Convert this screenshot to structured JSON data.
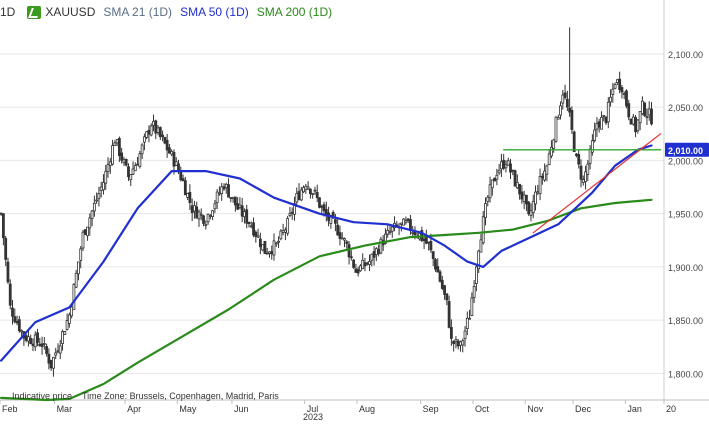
{
  "legend": {
    "timeframe": "1D",
    "symbol": "XAUUSD",
    "icon": "instrument-swatch-icon",
    "sma21": {
      "label": "SMA 21 (1D)",
      "color": "#5a6e86"
    },
    "sma50": {
      "label": "SMA 50 (1D)",
      "color": "#1f2fd0"
    },
    "sma200": {
      "label": "SMA 200 (1D)",
      "color": "#2a8a1a"
    }
  },
  "footer": {
    "indicative": "Indicative price",
    "timezone": "Time Zone: Brussels, Copenhagen, Madrid, Paris"
  },
  "chart_data": {
    "type": "candlestick",
    "x_labels": [
      "Feb",
      "Mar",
      "Apr",
      "May",
      "Jun",
      "Jul",
      "Aug",
      "Sep",
      "Oct",
      "Nov",
      "Dec",
      "Jan",
      "20"
    ],
    "year_label": "2023",
    "y_ticks": [
      "1,800.00",
      "1,850.00",
      "1,900.00",
      "1,950.00",
      "2,000.00",
      "2,050.00",
      "2,100.00"
    ],
    "ylim": [
      1775,
      2130
    ],
    "grid": true,
    "last_price_label": "2,010.00",
    "last_price": 2010,
    "price_color": "#333333",
    "sma50_color": "#1f2fd0",
    "sma200_color": "#2a8a1a",
    "trendline_color": "#e03030",
    "support_color": "#2fa82f",
    "support_level": 2010,
    "anchors": [
      [
        0,
        1950
      ],
      [
        4,
        1862
      ],
      [
        10,
        1835
      ],
      [
        18,
        1828
      ],
      [
        22,
        1808
      ],
      [
        30,
        1855
      ],
      [
        36,
        1930
      ],
      [
        45,
        1980
      ],
      [
        50,
        2020
      ],
      [
        56,
        1985
      ],
      [
        60,
        2000
      ],
      [
        66,
        2035
      ],
      [
        72,
        2015
      ],
      [
        76,
        2000
      ],
      [
        80,
        1980
      ],
      [
        84,
        1955
      ],
      [
        90,
        1945
      ],
      [
        98,
        1978
      ],
      [
        104,
        1955
      ],
      [
        110,
        1940
      ],
      [
        116,
        1915
      ],
      [
        121,
        1920
      ],
      [
        126,
        1940
      ],
      [
        130,
        1965
      ],
      [
        134,
        1980
      ],
      [
        138,
        1968
      ],
      [
        142,
        1950
      ],
      [
        148,
        1935
      ],
      [
        152,
        1920
      ],
      [
        156,
        1896
      ],
      [
        162,
        1905
      ],
      [
        168,
        1925
      ],
      [
        172,
        1935
      ],
      [
        178,
        1940
      ],
      [
        184,
        1930
      ],
      [
        188,
        1920
      ],
      [
        192,
        1895
      ],
      [
        196,
        1865
      ],
      [
        198,
        1830
      ],
      [
        202,
        1825
      ],
      [
        206,
        1855
      ],
      [
        210,
        1920
      ],
      [
        214,
        1965
      ],
      [
        218,
        1990
      ],
      [
        222,
        2000
      ],
      [
        226,
        1980
      ],
      [
        230,
        1962
      ],
      [
        232,
        1945
      ],
      [
        236,
        1975
      ],
      [
        240,
        1995
      ],
      [
        244,
        2035
      ],
      [
        247,
        2065
      ],
      [
        250,
        2040
      ],
      [
        253,
        2000
      ],
      [
        256,
        1980
      ],
      [
        259,
        2005
      ],
      [
        262,
        2035
      ],
      [
        266,
        2040
      ],
      [
        270,
        2075
      ],
      [
        273,
        2070
      ],
      [
        276,
        2045
      ],
      [
        279,
        2030
      ],
      [
        282,
        2050
      ],
      [
        286,
        2040
      ]
    ],
    "sma50": [
      [
        0,
        1812
      ],
      [
        15,
        1848
      ],
      [
        30,
        1862
      ],
      [
        45,
        1905
      ],
      [
        60,
        1955
      ],
      [
        75,
        1990
      ],
      [
        90,
        1990
      ],
      [
        105,
        1983
      ],
      [
        120,
        1965
      ],
      [
        140,
        1950
      ],
      [
        155,
        1942
      ],
      [
        170,
        1940
      ],
      [
        185,
        1932
      ],
      [
        195,
        1920
      ],
      [
        205,
        1905
      ],
      [
        212,
        1900
      ],
      [
        220,
        1915
      ],
      [
        230,
        1925
      ],
      [
        245,
        1940
      ],
      [
        260,
        1970
      ],
      [
        270,
        1995
      ],
      [
        280,
        2010
      ],
      [
        286,
        2014
      ]
    ],
    "sma200": [
      [
        0,
        1777
      ],
      [
        20,
        1775
      ],
      [
        30,
        1776
      ],
      [
        45,
        1790
      ],
      [
        60,
        1810
      ],
      [
        80,
        1835
      ],
      [
        100,
        1860
      ],
      [
        120,
        1888
      ],
      [
        140,
        1910
      ],
      [
        160,
        1920
      ],
      [
        180,
        1928
      ],
      [
        195,
        1930
      ],
      [
        210,
        1932
      ],
      [
        225,
        1935
      ],
      [
        240,
        1943
      ],
      [
        255,
        1955
      ],
      [
        270,
        1960
      ],
      [
        286,
        1963
      ]
    ],
    "trendline": [
      [
        234,
        1932
      ],
      [
        290,
        2025
      ]
    ],
    "support": [
      [
        221,
        2010
      ],
      [
        290,
        2010
      ]
    ]
  }
}
